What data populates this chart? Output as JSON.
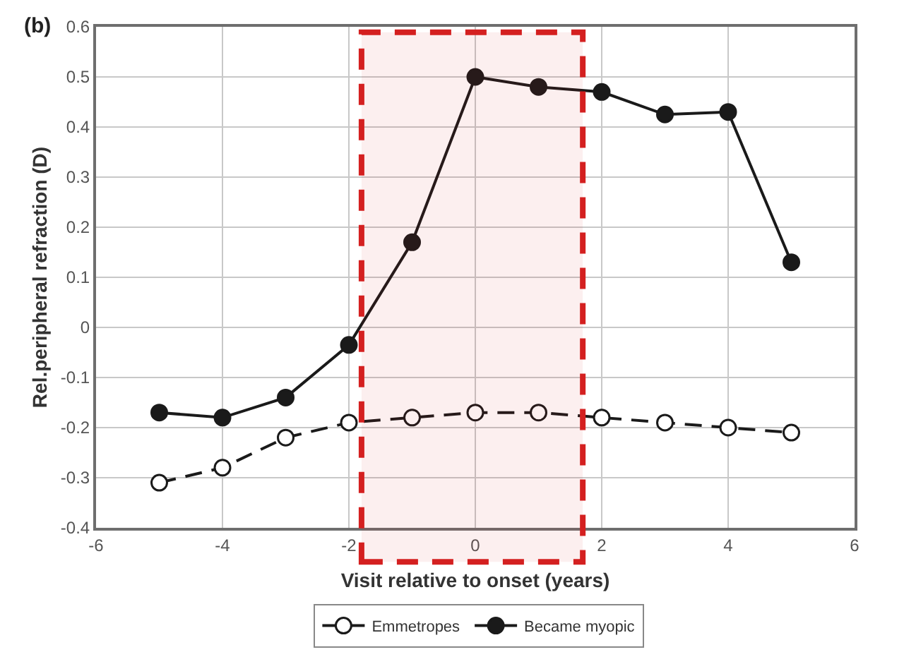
{
  "chart_data": {
    "type": "line",
    "xlabel": "Visit relative to onset (years)",
    "ylabel": "Rel.peripheral refraction (D)",
    "annotations": [
      "(b)"
    ],
    "x": [
      -5,
      -4,
      -3,
      -2,
      -1,
      0,
      1,
      2,
      3,
      4,
      5
    ],
    "series": [
      {
        "name": "Emmetropes",
        "color": "#1a1a1a",
        "line_style": "dashed",
        "values": [
          -0.31,
          -0.28,
          -0.22,
          -0.19,
          -0.18,
          -0.17,
          -0.17,
          -0.18,
          -0.19,
          -0.2,
          -0.21
        ]
      },
      {
        "name": "Became myopic",
        "color": "#1a1a1a",
        "line_style": "solid",
        "values": [
          -0.17,
          -0.18,
          -0.14,
          -0.035,
          0.17,
          0.5,
          0.48,
          0.47,
          0.425,
          0.43,
          0.13
        ]
      }
    ],
    "xlim": [
      -6,
      6
    ],
    "xticks": [
      -6,
      -4,
      -2,
      0,
      2,
      4,
      6
    ],
    "ylim": [
      -0.4,
      0.6
    ],
    "yticks": [
      -0.4,
      -0.3,
      -0.2,
      -0.1,
      0,
      0.1,
      0.2,
      0.3,
      0.4,
      0.5,
      0.6
    ],
    "bands": [
      {
        "axis": "x",
        "from": -1.8,
        "to": 1.7,
        "color": "#d42020"
      }
    ],
    "grid": true,
    "marker": "circle",
    "legend": "bottom"
  }
}
